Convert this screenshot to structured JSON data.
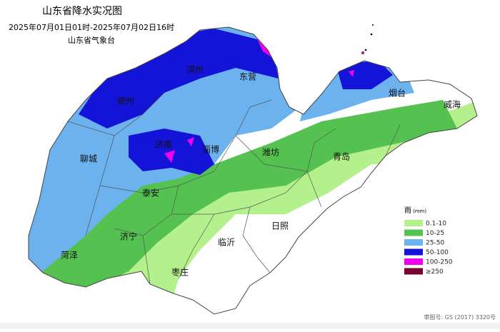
{
  "header": {
    "title": "山东省降水实况图",
    "subtitle": "2025年07月01日01时-2025年07月02日16时",
    "organization": "山东省气象台"
  },
  "cities": [
    "德州",
    "滨州",
    "东营",
    "烟台",
    "威海",
    "聊城",
    "济南",
    "淄博",
    "潍坊",
    "青岛",
    "泰安",
    "济宁",
    "临沂",
    "日照",
    "菏泽",
    "枣庄"
  ],
  "legend": {
    "title": "雨",
    "unit": "(mm)",
    "items": [
      {
        "label": "0.1-10",
        "color": "#b4f08c"
      },
      {
        "label": "10-25",
        "color": "#55c150"
      },
      {
        "label": "25-50",
        "color": "#6cb2ef"
      },
      {
        "label": "50-100",
        "color": "#1414d8"
      },
      {
        "label": "100-250",
        "color": "#f000f0"
      },
      {
        "label": "≥250",
        "color": "#7a0030"
      }
    ]
  },
  "footer": {
    "approval": "审图号: GS (2017) 3320号"
  }
}
